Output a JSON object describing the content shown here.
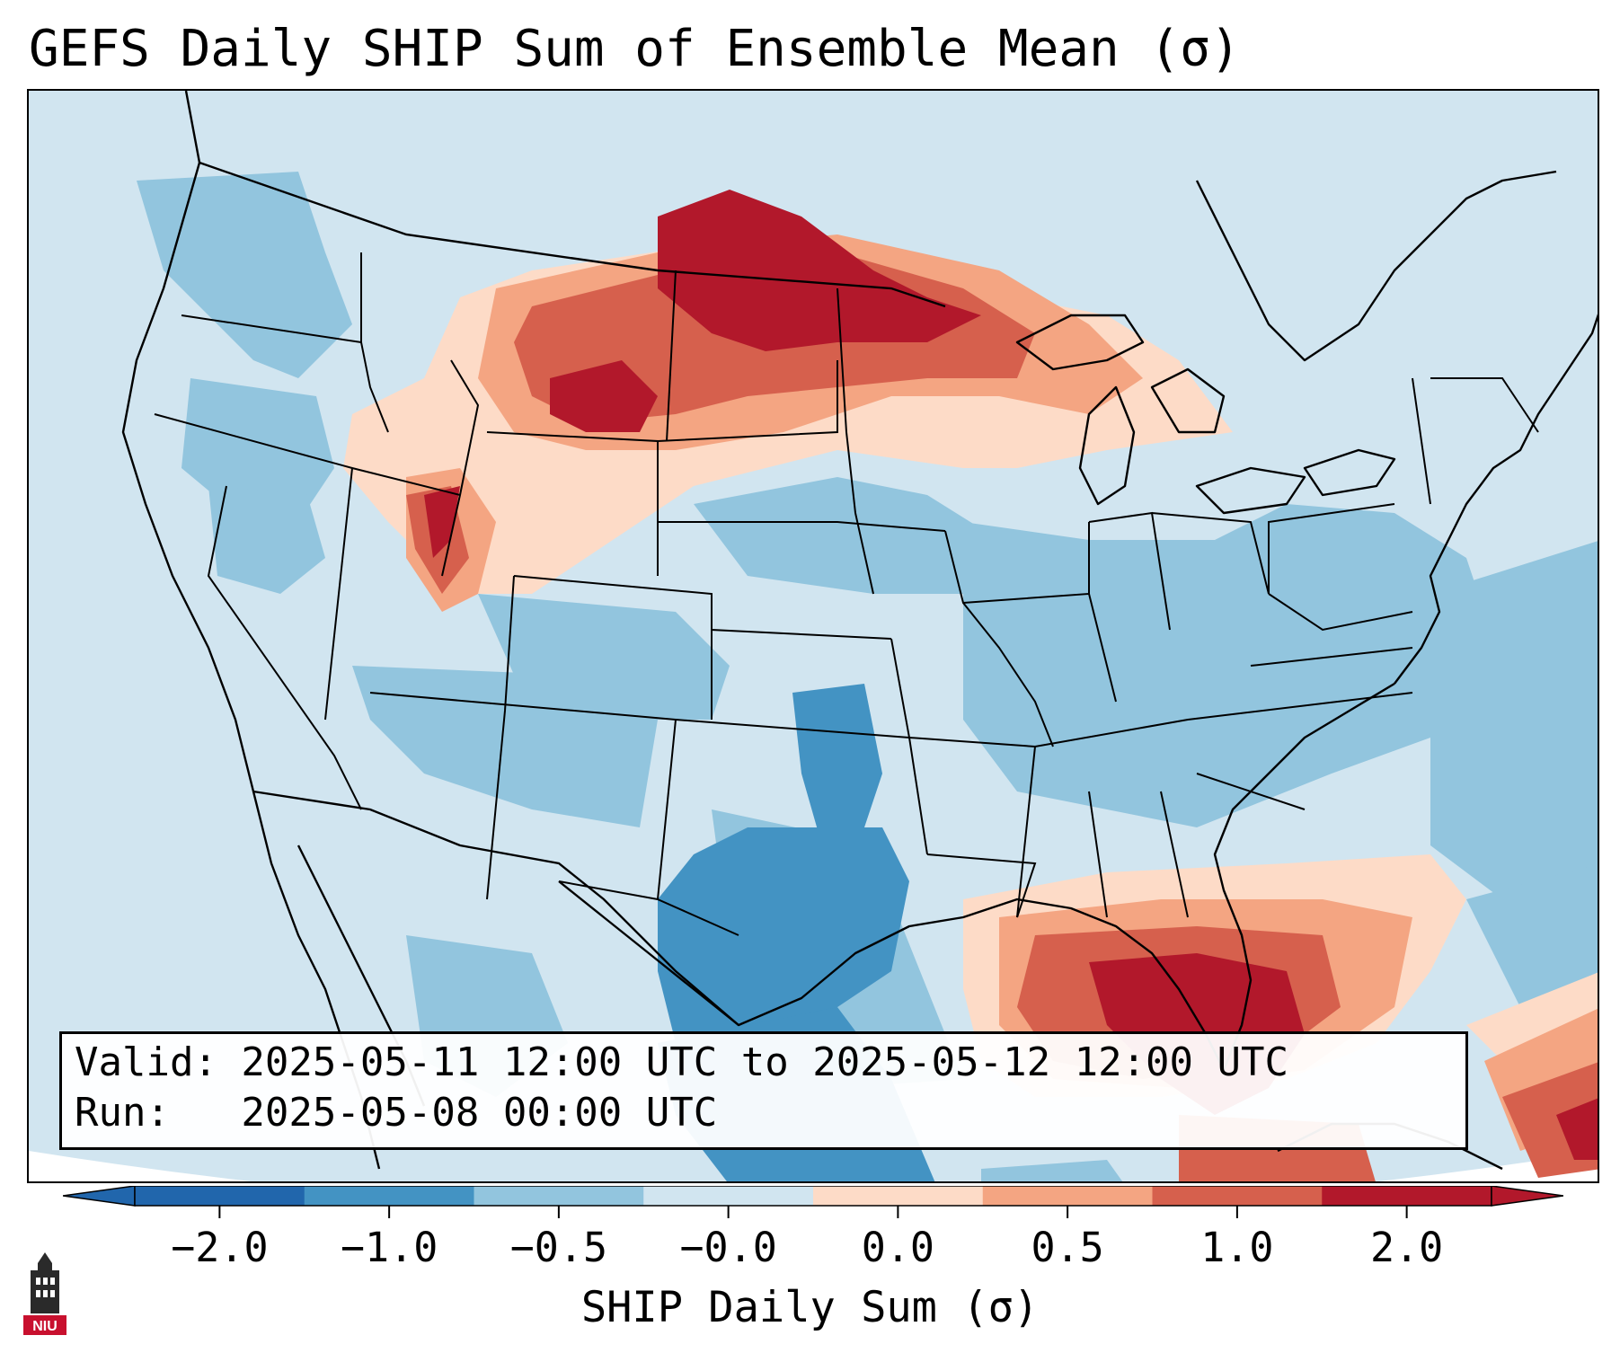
{
  "title": "GEFS Daily SHIP Sum of Ensemble Mean (σ)",
  "info": {
    "valid_line": "Valid: 2025-05-11 12:00 UTC to 2025-05-12 12:00 UTC",
    "run_line": "Run:   2025-05-08 00:00 UTC"
  },
  "colorbar": {
    "label": "SHIP Daily Sum (σ)",
    "ticks": [
      "−2.0",
      "−1.0",
      "−0.5",
      "−0.0",
      "0.0",
      "0.5",
      "1.0",
      "2.0"
    ],
    "colors": [
      "#2166ac",
      "#4393c3",
      "#92c5de",
      "#d1e5f0",
      "#fddbc7",
      "#f4a582",
      "#d6604d",
      "#b2182b"
    ],
    "extend": "both"
  },
  "map": {
    "projection": "Lambert Conformal",
    "region": "Contiguous United States",
    "boundaries": [
      "coastlines",
      "country borders",
      "state borders"
    ],
    "background_color": "#d1e5f0"
  },
  "logo": {
    "text": "NIU",
    "icon": "university-tower-icon"
  }
}
